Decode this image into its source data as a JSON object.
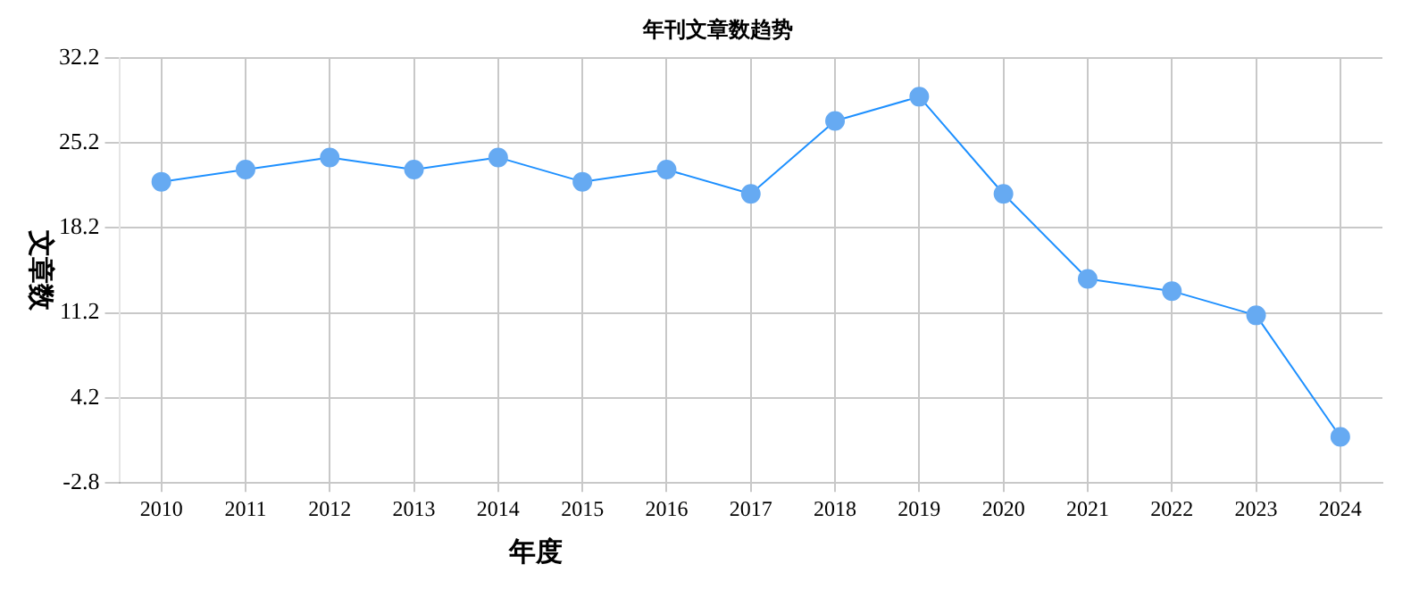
{
  "chart_data": {
    "type": "line",
    "title": "年刊文章数趋势",
    "xlabel": "年度",
    "ylabel": "文章数",
    "categories": [
      "2010",
      "2011",
      "2012",
      "2013",
      "2014",
      "2015",
      "2016",
      "2017",
      "2018",
      "2019",
      "2020",
      "2021",
      "2022",
      "2023",
      "2024"
    ],
    "series": [
      {
        "color": "#1e90ff",
        "values": [
          22,
          23,
          24,
          23,
          24,
          22,
          23,
          21,
          27,
          29,
          21,
          14,
          13,
          11,
          1
        ]
      }
    ],
    "ylim": [
      -2.8,
      32.2
    ],
    "yticks": [
      {
        "value": -2.8,
        "label": "-2.8"
      },
      {
        "value": 4.2,
        "label": "4.2"
      },
      {
        "value": 11.2,
        "label": "11.2"
      },
      {
        "value": 18.2,
        "label": "18.2"
      },
      {
        "value": 25.2,
        "label": "25.2"
      },
      {
        "value": 32.2,
        "label": "32.2"
      }
    ],
    "grid": true,
    "legend": false,
    "marker": "circle",
    "line_style": "solid"
  }
}
